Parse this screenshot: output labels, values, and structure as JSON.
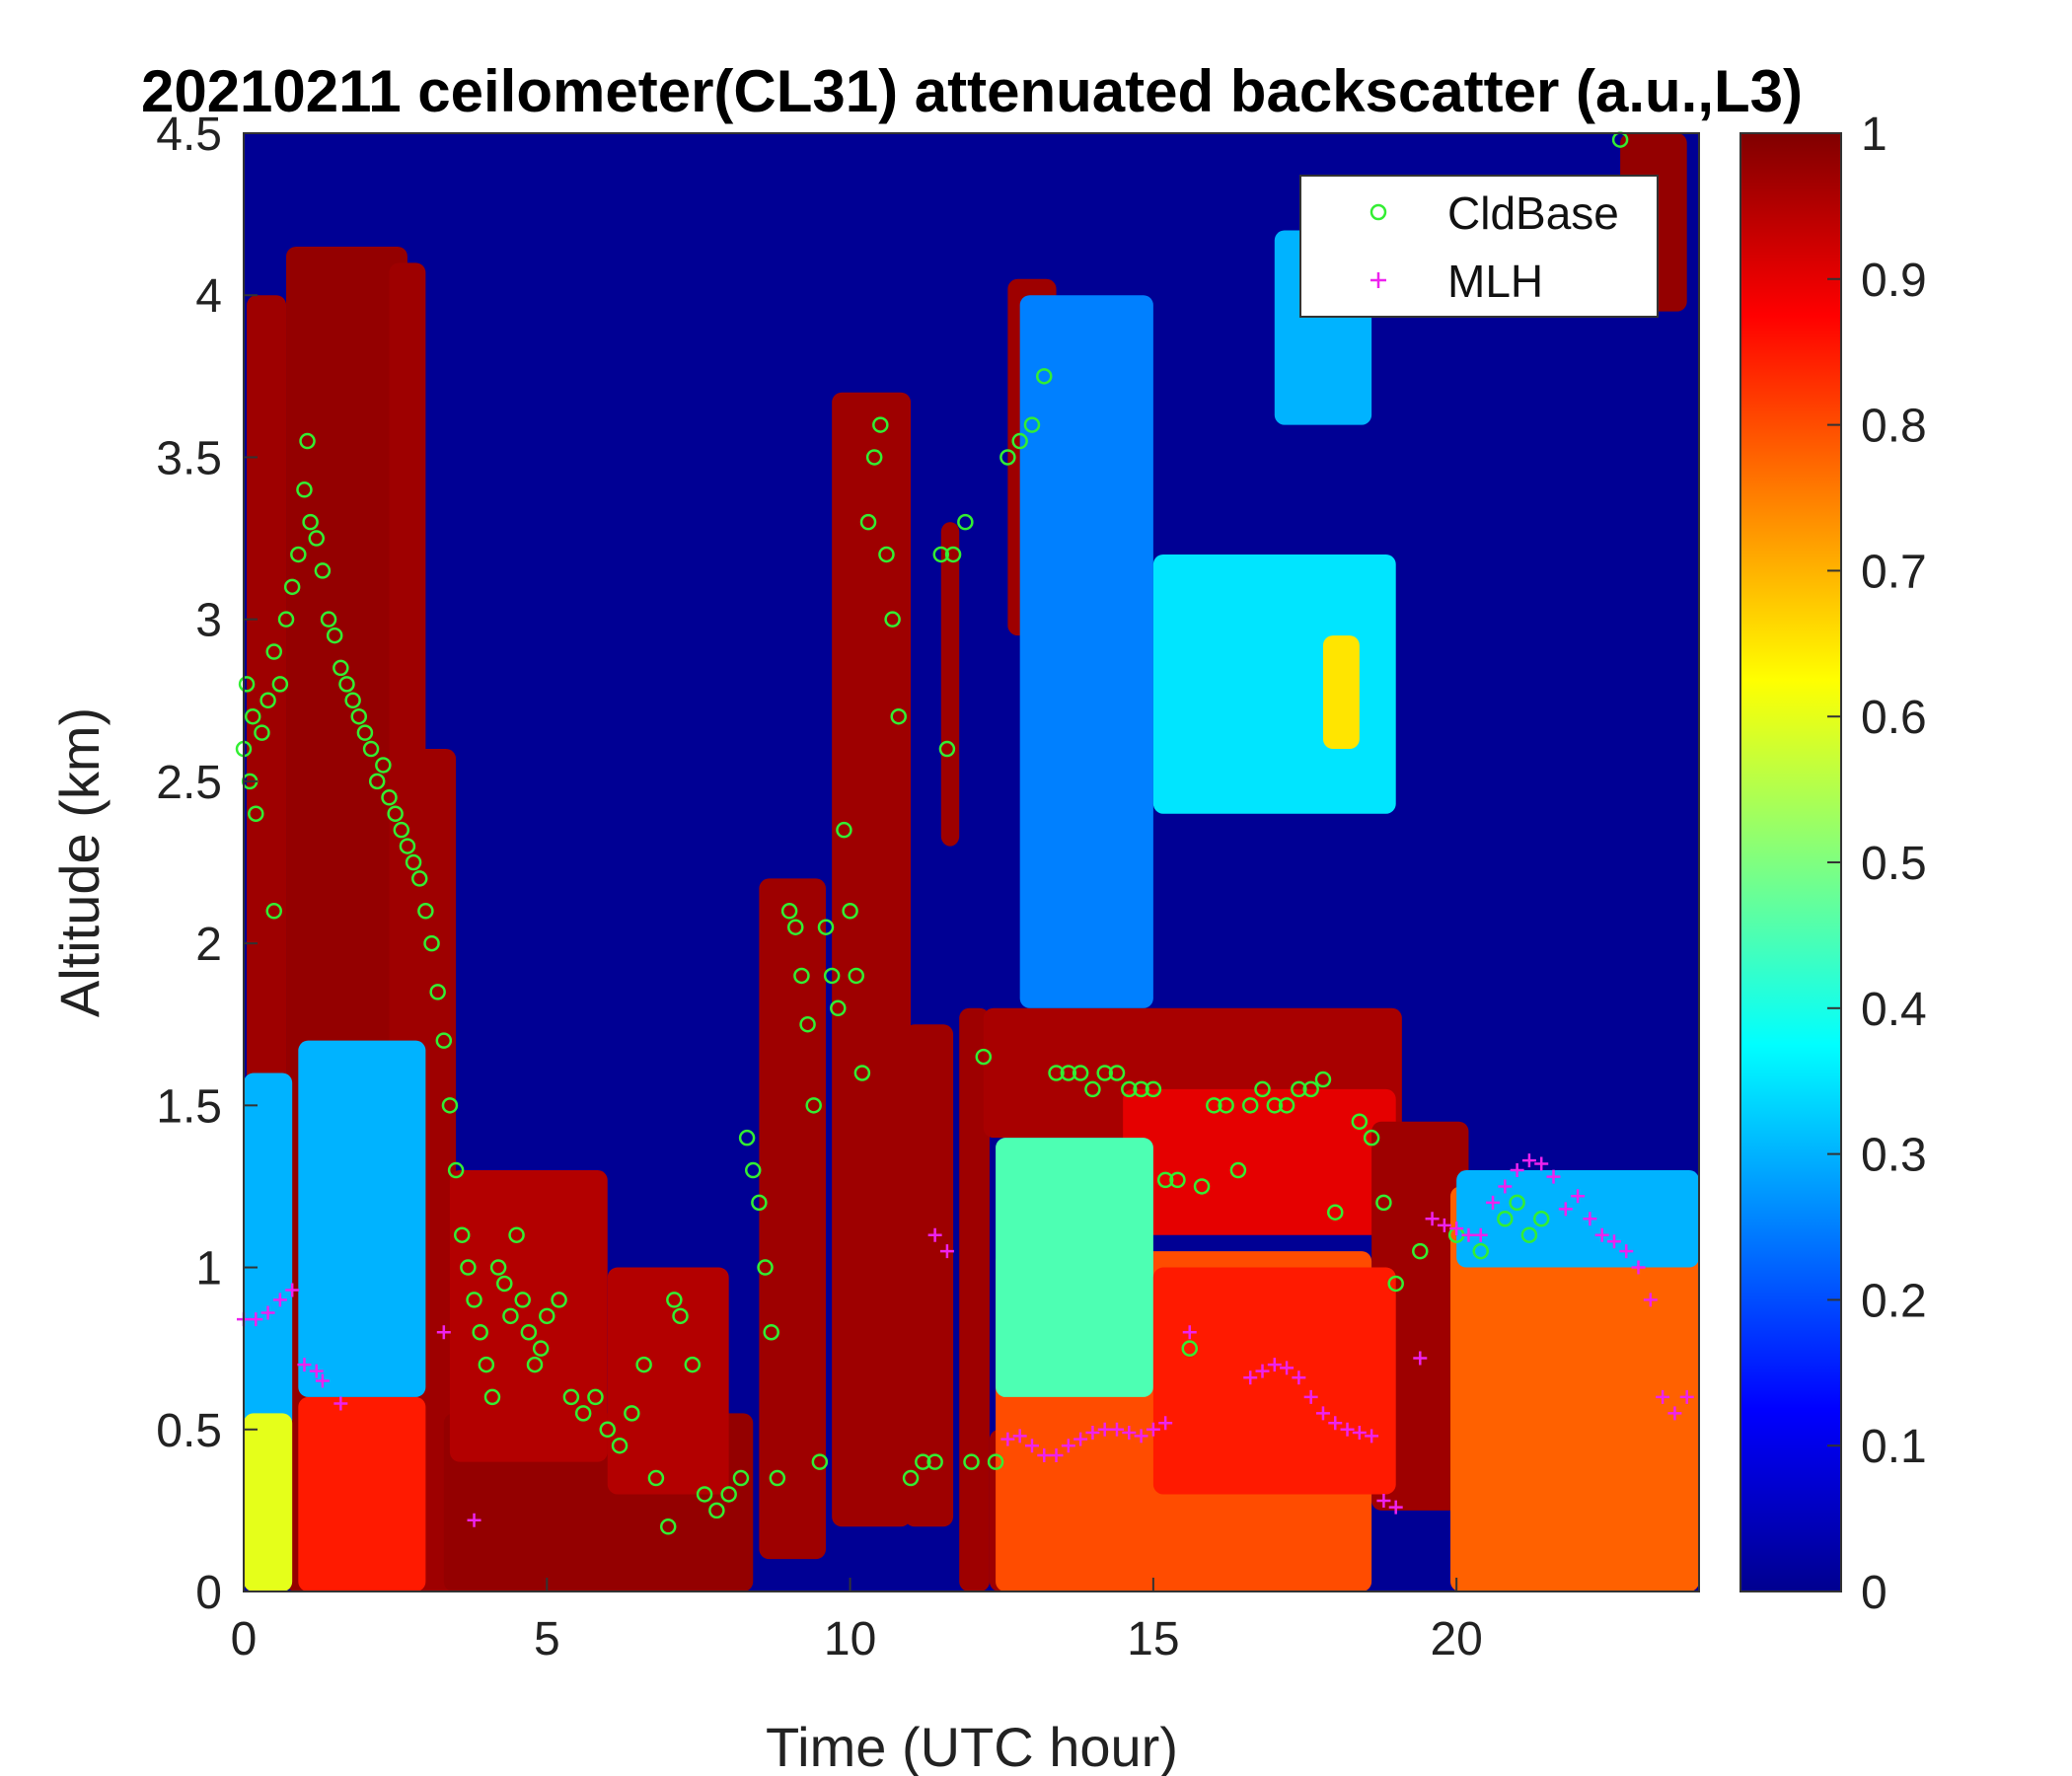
{
  "chart_data": {
    "type": "heatmap",
    "title": "20210211 ceilometer(CL31) attenuated backscatter (a.u.,L3)",
    "xlabel": "Time (UTC hour)",
    "ylabel": "Altitude (km)",
    "xlim": [
      0,
      24
    ],
    "ylim": [
      0,
      4.5
    ],
    "x_ticks": [
      "0",
      "5",
      "10",
      "15",
      "20"
    ],
    "y_ticks": [
      "0",
      "0.5",
      "1",
      "1.5",
      "2",
      "2.5",
      "3",
      "3.5",
      "4",
      "4.5"
    ],
    "colorbar": {
      "colormap": "jet",
      "range": [
        0,
        1
      ],
      "ticks": [
        "0",
        "0.1",
        "0.2",
        "0.3",
        "0.4",
        "0.5",
        "0.6",
        "0.7",
        "0.8",
        "0.9",
        "1"
      ]
    },
    "legend": {
      "position": "top-right"
    },
    "series": [
      {
        "name": "CldBase",
        "marker": "circle",
        "color": "#33ee33",
        "points": [
          [
            0.0,
            2.6
          ],
          [
            0.05,
            2.8
          ],
          [
            0.1,
            2.5
          ],
          [
            0.15,
            2.7
          ],
          [
            0.2,
            2.4
          ],
          [
            0.3,
            2.65
          ],
          [
            0.4,
            2.75
          ],
          [
            0.5,
            2.1
          ],
          [
            0.5,
            2.9
          ],
          [
            0.6,
            2.8
          ],
          [
            0.7,
            3.0
          ],
          [
            0.8,
            3.1
          ],
          [
            0.9,
            3.2
          ],
          [
            1.0,
            3.4
          ],
          [
            1.05,
            3.55
          ],
          [
            1.1,
            3.3
          ],
          [
            1.2,
            3.25
          ],
          [
            1.3,
            3.15
          ],
          [
            1.4,
            3.0
          ],
          [
            1.5,
            2.95
          ],
          [
            1.6,
            2.85
          ],
          [
            1.7,
            2.8
          ],
          [
            1.8,
            2.75
          ],
          [
            1.9,
            2.7
          ],
          [
            2.0,
            2.65
          ],
          [
            2.1,
            2.6
          ],
          [
            2.2,
            2.5
          ],
          [
            2.3,
            2.55
          ],
          [
            2.4,
            2.45
          ],
          [
            2.5,
            2.4
          ],
          [
            2.6,
            2.35
          ],
          [
            2.7,
            2.3
          ],
          [
            2.8,
            2.25
          ],
          [
            2.9,
            2.2
          ],
          [
            3.0,
            2.1
          ],
          [
            3.1,
            2.0
          ],
          [
            3.2,
            1.85
          ],
          [
            3.3,
            1.7
          ],
          [
            3.4,
            1.5
          ],
          [
            3.5,
            1.3
          ],
          [
            3.6,
            1.1
          ],
          [
            3.7,
            1.0
          ],
          [
            3.8,
            0.9
          ],
          [
            3.9,
            0.8
          ],
          [
            4.0,
            0.7
          ],
          [
            4.1,
            0.6
          ],
          [
            4.2,
            1.0
          ],
          [
            4.3,
            0.95
          ],
          [
            4.4,
            0.85
          ],
          [
            4.5,
            1.1
          ],
          [
            4.6,
            0.9
          ],
          [
            4.7,
            0.8
          ],
          [
            4.8,
            0.7
          ],
          [
            4.9,
            0.75
          ],
          [
            5.0,
            0.85
          ],
          [
            5.2,
            0.9
          ],
          [
            5.4,
            0.6
          ],
          [
            5.6,
            0.55
          ],
          [
            5.8,
            0.6
          ],
          [
            6.0,
            0.5
          ],
          [
            6.2,
            0.45
          ],
          [
            6.4,
            0.55
          ],
          [
            6.6,
            0.7
          ],
          [
            6.8,
            0.35
          ],
          [
            7.0,
            0.2
          ],
          [
            7.1,
            0.9
          ],
          [
            7.2,
            0.85
          ],
          [
            7.4,
            0.7
          ],
          [
            7.6,
            0.3
          ],
          [
            7.8,
            0.25
          ],
          [
            8.0,
            0.3
          ],
          [
            8.2,
            0.35
          ],
          [
            8.3,
            1.4
          ],
          [
            8.4,
            1.3
          ],
          [
            8.5,
            1.2
          ],
          [
            8.6,
            1.0
          ],
          [
            8.7,
            0.8
          ],
          [
            8.8,
            0.35
          ],
          [
            9.0,
            2.1
          ],
          [
            9.1,
            2.05
          ],
          [
            9.2,
            1.9
          ],
          [
            9.3,
            1.75
          ],
          [
            9.4,
            1.5
          ],
          [
            9.5,
            0.4
          ],
          [
            9.6,
            2.05
          ],
          [
            9.7,
            1.9
          ],
          [
            9.8,
            1.8
          ],
          [
            9.9,
            2.35
          ],
          [
            10.0,
            2.1
          ],
          [
            10.1,
            1.9
          ],
          [
            10.2,
            1.6
          ],
          [
            10.3,
            3.3
          ],
          [
            10.4,
            3.5
          ],
          [
            10.5,
            3.6
          ],
          [
            10.6,
            3.2
          ],
          [
            10.7,
            3.0
          ],
          [
            10.8,
            2.7
          ],
          [
            11.0,
            0.35
          ],
          [
            11.2,
            0.4
          ],
          [
            11.4,
            0.4
          ],
          [
            11.5,
            3.2
          ],
          [
            11.6,
            2.6
          ],
          [
            11.7,
            3.2
          ],
          [
            11.9,
            3.3
          ],
          [
            12.0,
            0.4
          ],
          [
            12.2,
            1.65
          ],
          [
            12.4,
            0.4
          ],
          [
            12.6,
            3.5
          ],
          [
            12.8,
            3.55
          ],
          [
            13.0,
            3.6
          ],
          [
            13.2,
            3.75
          ],
          [
            13.4,
            1.6
          ],
          [
            13.6,
            1.6
          ],
          [
            13.8,
            1.6
          ],
          [
            14.0,
            1.55
          ],
          [
            14.2,
            1.6
          ],
          [
            14.4,
            1.6
          ],
          [
            14.6,
            1.55
          ],
          [
            14.8,
            1.55
          ],
          [
            15.0,
            1.55
          ],
          [
            15.2,
            1.27
          ],
          [
            15.4,
            1.27
          ],
          [
            15.6,
            0.75
          ],
          [
            15.8,
            1.25
          ],
          [
            16.0,
            1.5
          ],
          [
            16.2,
            1.5
          ],
          [
            16.4,
            1.3
          ],
          [
            16.6,
            1.5
          ],
          [
            16.8,
            1.55
          ],
          [
            17.0,
            1.5
          ],
          [
            17.2,
            1.5
          ],
          [
            17.4,
            1.55
          ],
          [
            17.6,
            1.55
          ],
          [
            17.8,
            1.58
          ],
          [
            18.0,
            1.17
          ],
          [
            18.4,
            1.45
          ],
          [
            18.6,
            1.4
          ],
          [
            18.8,
            1.2
          ],
          [
            19.0,
            0.95
          ],
          [
            19.4,
            1.05
          ],
          [
            20.0,
            1.1
          ],
          [
            20.4,
            1.05
          ],
          [
            20.8,
            1.15
          ],
          [
            21.0,
            1.2
          ],
          [
            21.2,
            1.1
          ],
          [
            21.4,
            1.15
          ],
          [
            22.7,
            4.48
          ]
        ]
      },
      {
        "name": "MLH",
        "marker": "plus",
        "color": "#ee22ee",
        "points": [
          [
            0.0,
            0.84
          ],
          [
            0.2,
            0.84
          ],
          [
            0.4,
            0.86
          ],
          [
            0.6,
            0.9
          ],
          [
            0.8,
            0.93
          ],
          [
            1.0,
            0.7
          ],
          [
            1.2,
            0.68
          ],
          [
            1.3,
            0.65
          ],
          [
            1.6,
            0.58
          ],
          [
            3.3,
            0.8
          ],
          [
            3.8,
            0.22
          ],
          [
            11.4,
            1.1
          ],
          [
            11.6,
            1.05
          ],
          [
            12.6,
            0.47
          ],
          [
            12.8,
            0.48
          ],
          [
            13.0,
            0.45
          ],
          [
            13.2,
            0.42
          ],
          [
            13.4,
            0.42
          ],
          [
            13.6,
            0.45
          ],
          [
            13.8,
            0.47
          ],
          [
            14.0,
            0.49
          ],
          [
            14.2,
            0.5
          ],
          [
            14.4,
            0.5
          ],
          [
            14.6,
            0.49
          ],
          [
            14.8,
            0.48
          ],
          [
            15.0,
            0.5
          ],
          [
            15.2,
            0.52
          ],
          [
            15.6,
            0.8
          ],
          [
            16.6,
            0.66
          ],
          [
            16.8,
            0.68
          ],
          [
            17.0,
            0.7
          ],
          [
            17.2,
            0.69
          ],
          [
            17.4,
            0.66
          ],
          [
            17.6,
            0.6
          ],
          [
            17.8,
            0.55
          ],
          [
            18.0,
            0.52
          ],
          [
            18.2,
            0.5
          ],
          [
            18.4,
            0.49
          ],
          [
            18.6,
            0.48
          ],
          [
            18.8,
            0.28
          ],
          [
            19.0,
            0.26
          ],
          [
            19.4,
            0.72
          ],
          [
            19.6,
            1.15
          ],
          [
            19.8,
            1.13
          ],
          [
            20.0,
            1.12
          ],
          [
            20.2,
            1.1
          ],
          [
            20.4,
            1.1
          ],
          [
            20.6,
            1.2
          ],
          [
            20.8,
            1.25
          ],
          [
            21.0,
            1.3
          ],
          [
            21.2,
            1.33
          ],
          [
            21.4,
            1.32
          ],
          [
            21.6,
            1.28
          ],
          [
            21.8,
            1.18
          ],
          [
            22.0,
            1.22
          ],
          [
            22.2,
            1.15
          ],
          [
            22.4,
            1.1
          ],
          [
            22.6,
            1.08
          ],
          [
            22.8,
            1.05
          ],
          [
            23.0,
            1.0
          ],
          [
            23.2,
            0.9
          ],
          [
            23.4,
            0.6
          ],
          [
            23.6,
            0.55
          ],
          [
            23.8,
            0.6
          ]
        ]
      }
    ],
    "backscatter_field": {
      "background": 0.02,
      "layers": [
        {
          "x": [
            0.05,
            0.7
          ],
          "y": [
            1.25,
            4.0
          ],
          "v": 0.97
        },
        {
          "x": [
            0.7,
            2.7
          ],
          "y": [
            0.0,
            4.15
          ],
          "v": 0.98
        },
        {
          "x": [
            2.4,
            3.0
          ],
          "y": [
            1.2,
            4.1
          ],
          "v": 0.97
        },
        {
          "x": [
            2.8,
            3.5
          ],
          "y": [
            0.0,
            2.6
          ],
          "v": 0.97
        },
        {
          "x": [
            3.3,
            8.4
          ],
          "y": [
            0.0,
            0.55
          ],
          "v": 0.98
        },
        {
          "x": [
            3.4,
            6.0
          ],
          "y": [
            0.4,
            1.3
          ],
          "v": 0.95
        },
        {
          "x": [
            6.0,
            8.0
          ],
          "y": [
            0.3,
            1.0
          ],
          "v": 0.95
        },
        {
          "x": [
            8.5,
            9.6
          ],
          "y": [
            0.1,
            2.2
          ],
          "v": 0.97
        },
        {
          "x": [
            9.7,
            11.0
          ],
          "y": [
            0.2,
            3.7
          ],
          "v": 0.97
        },
        {
          "x": [
            10.9,
            11.7
          ],
          "y": [
            0.2,
            1.75
          ],
          "v": 0.97
        },
        {
          "x": [
            11.5,
            11.8
          ],
          "y": [
            2.3,
            3.3
          ],
          "v": 0.97
        },
        {
          "x": [
            11.8,
            12.3
          ],
          "y": [
            0.0,
            1.8
          ],
          "v": 0.97
        },
        {
          "x": [
            12.2,
            19.1
          ],
          "y": [
            1.4,
            1.8
          ],
          "v": 0.96
        },
        {
          "x": [
            12.3,
            14.0
          ],
          "y": [
            0.0,
            0.5
          ],
          "v": 0.97
        },
        {
          "x": [
            12.6,
            13.4
          ],
          "y": [
            2.95,
            4.05
          ],
          "v": 0.97
        },
        {
          "x": [
            14.5,
            19.0
          ],
          "y": [
            1.1,
            1.55
          ],
          "v": 0.9
        },
        {
          "x": [
            18.6,
            20.2
          ],
          "y": [
            0.25,
            1.45
          ],
          "v": 0.97
        },
        {
          "x": [
            22.7,
            23.8
          ],
          "y": [
            3.95,
            4.5
          ],
          "v": 0.98
        },
        {
          "x": [
            0.0,
            0.8
          ],
          "y": [
            0.5,
            1.6
          ],
          "v": 0.3
        },
        {
          "x": [
            0.0,
            0.8
          ],
          "y": [
            0.0,
            0.55
          ],
          "v": 0.6
        },
        {
          "x": [
            0.9,
            3.0
          ],
          "y": [
            0.0,
            0.6
          ],
          "v": 0.85
        },
        {
          "x": [
            0.9,
            3.0
          ],
          "y": [
            0.6,
            1.7
          ],
          "v": 0.3
        },
        {
          "x": [
            12.4,
            18.6
          ],
          "y": [
            0.0,
            1.05
          ],
          "v": 0.8
        },
        {
          "x": [
            12.4,
            15.0
          ],
          "y": [
            0.6,
            1.4
          ],
          "v": 0.45
        },
        {
          "x": [
            15.0,
            19.0
          ],
          "y": [
            0.3,
            1.0
          ],
          "v": 0.85
        },
        {
          "x": [
            19.9,
            24.0
          ],
          "y": [
            0.0,
            1.25
          ],
          "v": 0.78
        },
        {
          "x": [
            20.0,
            24.0
          ],
          "y": [
            1.0,
            1.3
          ],
          "v": 0.3
        },
        {
          "x": [
            12.8,
            15.0
          ],
          "y": [
            1.8,
            4.0
          ],
          "v": 0.25
        },
        {
          "x": [
            15.0,
            19.0
          ],
          "y": [
            2.4,
            3.2
          ],
          "v": 0.35
        },
        {
          "x": [
            17.0,
            18.6
          ],
          "y": [
            3.6,
            4.2
          ],
          "v": 0.3
        },
        {
          "x": [
            17.8,
            18.4
          ],
          "y": [
            2.6,
            2.95
          ],
          "v": 0.65
        }
      ]
    }
  }
}
